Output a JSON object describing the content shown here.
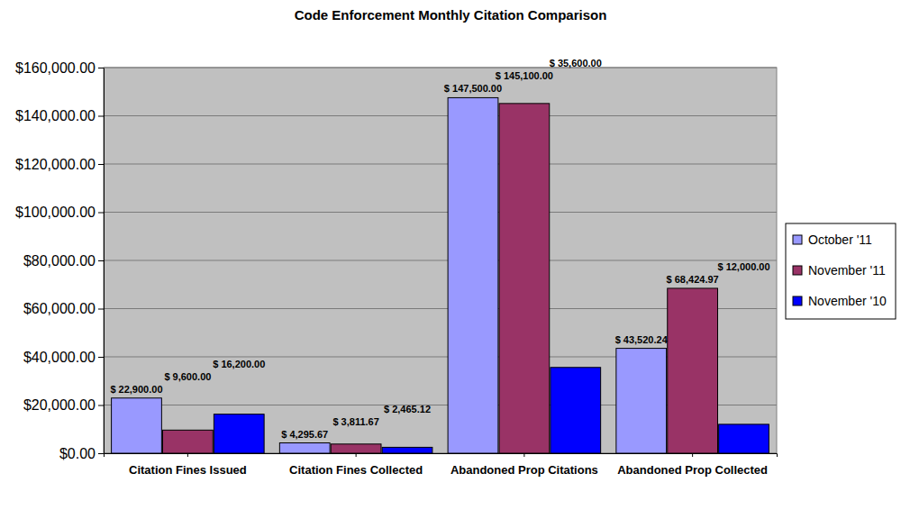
{
  "chart_data": {
    "type": "bar",
    "title": "Code Enforcement Monthly Citation Comparison",
    "categories": [
      "Citation Fines Issued",
      "Citation Fines Collected",
      "Abandoned Prop Citations",
      "Abandoned Prop Collected"
    ],
    "series": [
      {
        "name": "October '11",
        "color": "#9999FF",
        "values": [
          22900,
          4295.67,
          147500,
          43520.24
        ],
        "value_labels": [
          "$ 22,900.00",
          "$ 4,295.67",
          "$ 147,500.00",
          "$ 43,520.24"
        ]
      },
      {
        "name": "November '11",
        "color": "#993366",
        "values": [
          9600,
          3811.67,
          145100,
          68424.97
        ],
        "value_labels": [
          "$ 9,600.00",
          "$ 3,811.67",
          "$ 145,100.00",
          "$ 68,424.97"
        ]
      },
      {
        "name": "November '10",
        "color": "#0000FF",
        "values": [
          16200,
          2465.12,
          35600,
          12000
        ],
        "value_labels": [
          "$ 16,200.00",
          "$ 2,465.12",
          "$ 35,600.00",
          "$ 12,000.00"
        ]
      }
    ],
    "ylim": [
      0,
      160000
    ],
    "yticks": [
      {
        "value": 0,
        "label": "$0.00"
      },
      {
        "value": 20000,
        "label": "$20,000.00"
      },
      {
        "value": 40000,
        "label": "$40,000.00"
      },
      {
        "value": 60000,
        "label": "$60,000.00"
      },
      {
        "value": 80000,
        "label": "$80,000.00"
      },
      {
        "value": 100000,
        "label": "$100,000.00"
      },
      {
        "value": 120000,
        "label": "$120,000.00"
      },
      {
        "value": 140000,
        "label": "$140,000.00"
      },
      {
        "value": 160000,
        "label": "$160,000.00"
      }
    ],
    "grid": true,
    "legend": "right",
    "data_labels": true
  }
}
